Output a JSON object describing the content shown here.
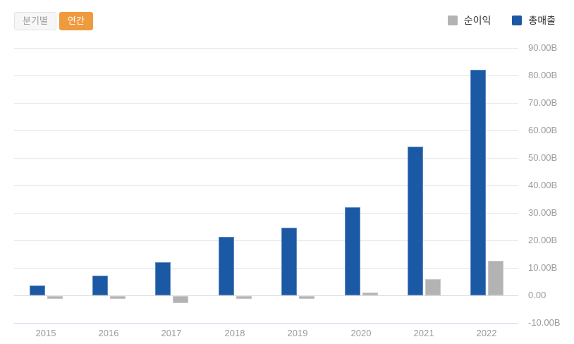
{
  "controls": {
    "quarterly_label": "분기별",
    "annual_label": "연간",
    "active_toggle": "연간"
  },
  "legend": {
    "items": [
      {
        "label": "순이익",
        "color": "#b3b3b3"
      },
      {
        "label": "총매출",
        "color": "#1c59a4"
      }
    ]
  },
  "colors": {
    "accent_orange": "#f09a3e",
    "revenue_blue": "#1c59a4",
    "net_income_gray": "#b3b3b3",
    "gridline": "#e6e6e6",
    "axis_line": "#ccd6eb",
    "tick_text": "#9a9a9a"
  },
  "chart_data": {
    "type": "bar",
    "title": "",
    "xlabel": "",
    "ylabel": "",
    "unit": "B",
    "grid": true,
    "legend_position": "top-right",
    "y_axis_side": "right",
    "ylim": [
      -10,
      90
    ],
    "ytick_labels": [
      "90.00B",
      "80.00B",
      "70.00B",
      "60.00B",
      "50.00B",
      "40.00B",
      "30.00B",
      "20.00B",
      "10.00B",
      "0.00",
      "-10.00B"
    ],
    "categories": [
      "2015",
      "2016",
      "2017",
      "2018",
      "2019",
      "2020",
      "2021",
      "2022"
    ],
    "series": [
      {
        "name": "순이익",
        "color": "#b3b3b3",
        "border_color": "#c9c9c9",
        "values": [
          -1.1,
          -1.1,
          -2.5,
          -1.1,
          -1.1,
          0.9,
          5.8,
          12.6
        ]
      },
      {
        "name": "총매출",
        "color": "#1c59a4",
        "border_color": "#5e8bc0",
        "values": [
          3.6,
          7.2,
          12.0,
          21.3,
          24.7,
          32.0,
          54.0,
          82.0
        ]
      }
    ]
  }
}
